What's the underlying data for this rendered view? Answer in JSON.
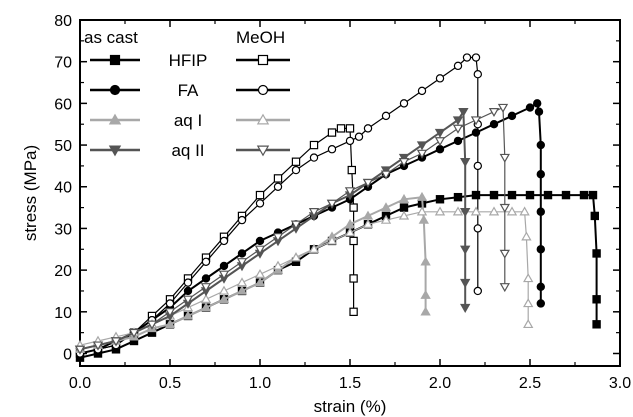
{
  "chart_data": {
    "type": "line",
    "xlabel": "strain (%)",
    "ylabel": "stress (MPa)",
    "xlim": [
      0.0,
      3.0
    ],
    "ylim": [
      -3,
      80
    ],
    "x_ticks": [
      "0.0",
      "0.5",
      "1.0",
      "1.5",
      "2.0",
      "2.5",
      "3.0"
    ],
    "y_ticks": [
      "0",
      "10",
      "20",
      "30",
      "40",
      "50",
      "60",
      "70",
      "80"
    ],
    "legend": {
      "placement": "top-left",
      "group_headers": [
        "as cast",
        "MeOH"
      ],
      "entries": [
        "HFIP",
        "FA",
        "aq I",
        "aq II"
      ]
    },
    "series": [
      {
        "name": "HFIP",
        "group": "as cast",
        "color": "#000000",
        "marker": "square",
        "filled": true,
        "x": [
          0.0,
          0.1,
          0.2,
          0.3,
          0.4,
          0.5,
          0.6,
          0.7,
          0.8,
          0.9,
          1.0,
          1.1,
          1.2,
          1.3,
          1.4,
          1.5,
          1.6,
          1.7,
          1.8,
          1.9,
          2.0,
          2.1,
          2.2,
          2.3,
          2.4,
          2.5,
          2.6,
          2.7,
          2.8,
          2.85,
          2.86,
          2.87,
          2.87,
          2.87
        ],
        "y": [
          -1,
          0,
          1,
          3,
          5,
          7,
          9,
          11,
          13,
          15,
          17,
          20,
          22,
          25,
          27,
          29,
          31,
          33,
          35,
          36,
          37,
          37.5,
          38,
          38,
          38,
          38,
          38,
          38,
          38,
          38,
          33,
          24,
          13,
          7
        ]
      },
      {
        "name": "HFIP",
        "group": "MeOH",
        "color": "#000000",
        "marker": "square",
        "filled": false,
        "x": [
          0.0,
          0.1,
          0.2,
          0.3,
          0.4,
          0.5,
          0.6,
          0.7,
          0.8,
          0.9,
          1.0,
          1.1,
          1.2,
          1.3,
          1.4,
          1.45,
          1.5,
          1.51,
          1.52,
          1.52,
          1.52,
          1.52
        ],
        "y": [
          0,
          1,
          2,
          5,
          9,
          13,
          18,
          23,
          28,
          33,
          38,
          42,
          46,
          50,
          53,
          54,
          54,
          44,
          35,
          27,
          18,
          10
        ]
      },
      {
        "name": "FA",
        "group": "as cast",
        "color": "#000000",
        "marker": "circle",
        "filled": true,
        "x": [
          0.0,
          0.1,
          0.2,
          0.3,
          0.4,
          0.5,
          0.6,
          0.7,
          0.8,
          0.9,
          1.0,
          1.1,
          1.2,
          1.3,
          1.4,
          1.5,
          1.6,
          1.7,
          1.8,
          1.9,
          2.0,
          2.1,
          2.2,
          2.3,
          2.4,
          2.5,
          2.54,
          2.55,
          2.56,
          2.56,
          2.56,
          2.56,
          2.56,
          2.56
        ],
        "y": [
          0,
          1,
          3,
          5,
          8,
          11,
          15,
          18,
          21,
          24,
          27,
          29,
          31,
          33,
          35,
          37,
          40,
          43,
          45,
          47,
          49,
          51,
          53,
          55,
          57,
          59,
          60,
          58,
          50,
          43,
          34,
          25,
          16,
          12
        ]
      },
      {
        "name": "FA",
        "group": "MeOH",
        "color": "#000000",
        "marker": "circle",
        "filled": false,
        "x": [
          0.0,
          0.1,
          0.2,
          0.3,
          0.4,
          0.5,
          0.6,
          0.7,
          0.8,
          0.9,
          1.0,
          1.1,
          1.2,
          1.3,
          1.4,
          1.5,
          1.55,
          1.6,
          1.7,
          1.8,
          1.9,
          2.0,
          2.1,
          2.15,
          2.2,
          2.21,
          2.21,
          2.21,
          2.21,
          2.21
        ],
        "y": [
          0,
          1,
          2,
          5,
          8,
          12,
          17,
          22,
          27,
          32,
          36,
          40,
          44,
          47,
          49,
          51,
          52,
          54,
          57,
          60,
          63,
          66,
          69,
          71,
          71,
          67,
          55,
          45,
          30,
          15
        ]
      },
      {
        "name": "aq I",
        "group": "as cast",
        "color": "#a8a8a8",
        "marker": "triangle-up",
        "filled": true,
        "x": [
          0.0,
          0.1,
          0.2,
          0.3,
          0.4,
          0.5,
          0.6,
          0.7,
          0.8,
          0.9,
          1.0,
          1.1,
          1.2,
          1.3,
          1.4,
          1.5,
          1.6,
          1.7,
          1.8,
          1.9,
          1.91,
          1.92,
          1.92,
          1.92
        ],
        "y": [
          1,
          2,
          3,
          4,
          6,
          7,
          9,
          11,
          13,
          15,
          17,
          20,
          23,
          25,
          28,
          31,
          33,
          35,
          37,
          37.5,
          32,
          22,
          14,
          10
        ]
      },
      {
        "name": "aq I",
        "group": "MeOH",
        "color": "#a8a8a8",
        "marker": "triangle-up",
        "filled": false,
        "x": [
          0.0,
          0.1,
          0.2,
          0.3,
          0.4,
          0.5,
          0.6,
          0.7,
          0.8,
          0.9,
          1.0,
          1.1,
          1.2,
          1.3,
          1.4,
          1.5,
          1.6,
          1.7,
          1.8,
          1.9,
          2.0,
          2.1,
          2.2,
          2.3,
          2.4,
          2.47,
          2.48,
          2.49,
          2.49,
          2.49
        ],
        "y": [
          2,
          3,
          4,
          5,
          7,
          9,
          11,
          13,
          15,
          17,
          19,
          21,
          23,
          25,
          27,
          29,
          31,
          32,
          33,
          34,
          34,
          34,
          34,
          34,
          34,
          34,
          28,
          18,
          12,
          7
        ]
      },
      {
        "name": "aq II",
        "group": "as cast",
        "color": "#555555",
        "marker": "triangle-down",
        "filled": true,
        "x": [
          0.0,
          0.1,
          0.2,
          0.3,
          0.4,
          0.5,
          0.6,
          0.7,
          0.8,
          0.9,
          1.0,
          1.1,
          1.2,
          1.3,
          1.4,
          1.5,
          1.6,
          1.7,
          1.8,
          1.9,
          2.0,
          2.1,
          2.13,
          2.14,
          2.14,
          2.14,
          2.14,
          2.14
        ],
        "y": [
          1,
          2,
          3,
          5,
          7,
          9,
          12,
          15,
          18,
          21,
          24,
          27,
          30,
          33,
          36,
          38,
          41,
          44,
          47,
          50,
          53,
          56,
          58,
          46,
          34,
          25,
          17,
          11
        ]
      },
      {
        "name": "aq II",
        "group": "MeOH",
        "color": "#555555",
        "marker": "triangle-down",
        "filled": false,
        "x": [
          0.0,
          0.1,
          0.2,
          0.3,
          0.4,
          0.5,
          0.6,
          0.7,
          0.8,
          0.9,
          1.0,
          1.1,
          1.2,
          1.3,
          1.4,
          1.5,
          1.6,
          1.7,
          1.8,
          1.9,
          2.0,
          2.1,
          2.2,
          2.3,
          2.35,
          2.36,
          2.36,
          2.36,
          2.36
        ],
        "y": [
          1,
          2,
          3,
          5,
          7,
          10,
          13,
          16,
          19,
          22,
          25,
          28,
          31,
          34,
          36,
          39,
          41,
          43,
          46,
          48,
          51,
          54,
          56,
          58,
          59,
          47,
          35,
          24,
          16
        ]
      }
    ]
  }
}
